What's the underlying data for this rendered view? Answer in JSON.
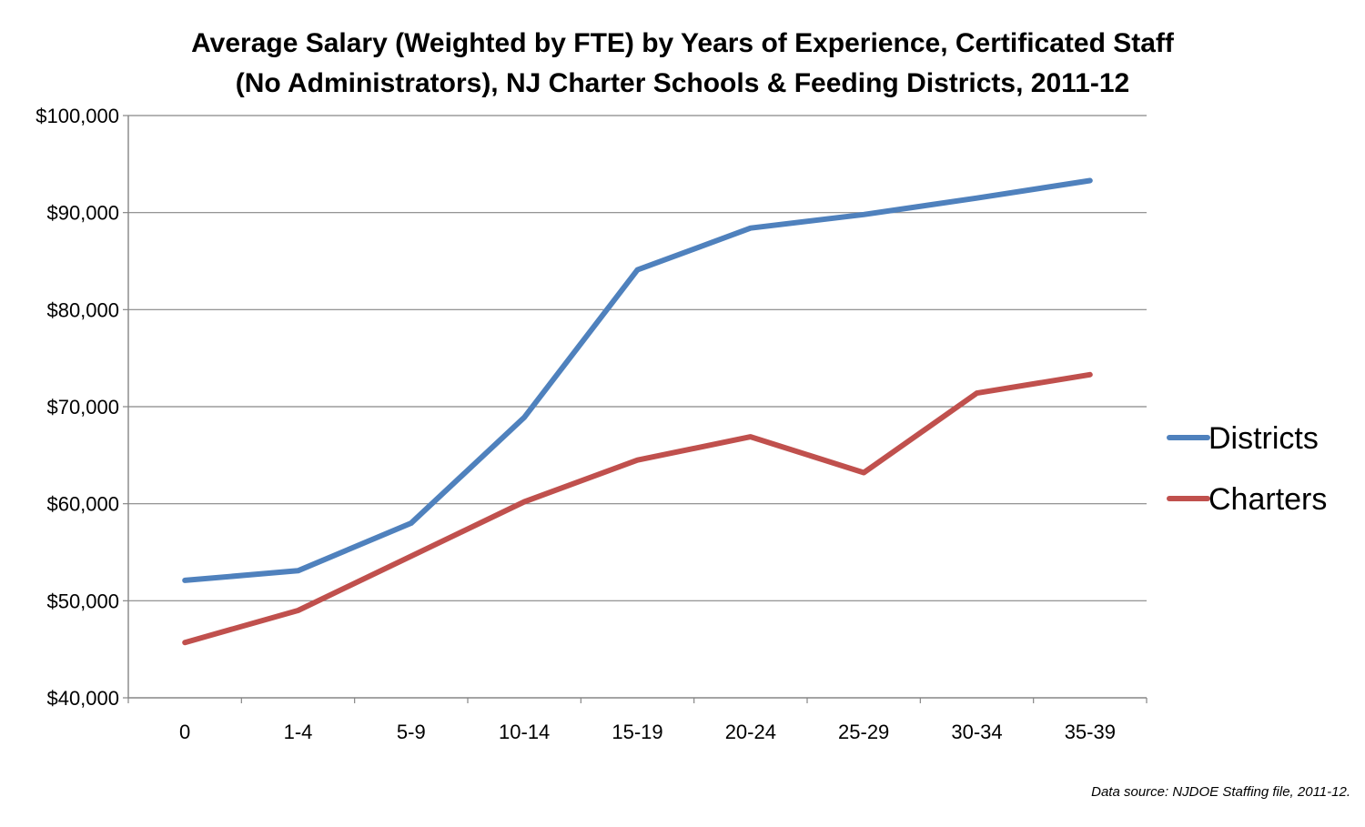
{
  "chart_data": {
    "type": "line",
    "title_lines": [
      "Average Salary (Weighted by FTE) by Years of Experience, Certificated Staff",
      "(No Administrators), NJ Charter Schools & Feeding Districts, 2011-12"
    ],
    "xlabel": "",
    "ylabel": "",
    "categories": [
      "0",
      "1-4",
      "5-9",
      "10-14",
      "15-19",
      "20-24",
      "25-29",
      "30-34",
      "35-39"
    ],
    "ylim": [
      40000,
      100000
    ],
    "yticks": [
      40000,
      50000,
      60000,
      70000,
      80000,
      90000,
      100000
    ],
    "ytick_labels": [
      "$40,000",
      "$50,000",
      "$60,000",
      "$70,000",
      "$80,000",
      "$90,000",
      "$100,000"
    ],
    "grid": true,
    "legend_position": "right",
    "series": [
      {
        "name": "Districts",
        "color": "#4f81bd",
        "values": [
          52100,
          53100,
          58000,
          68900,
          84100,
          88400,
          89800,
          91500,
          93300
        ]
      },
      {
        "name": "Charters",
        "color": "#c0504d",
        "values": [
          45700,
          49000,
          54600,
          60200,
          64500,
          66900,
          63200,
          71400,
          73300
        ]
      }
    ]
  },
  "source_note": "Data source: NJDOE Staffing file, 2011-12."
}
